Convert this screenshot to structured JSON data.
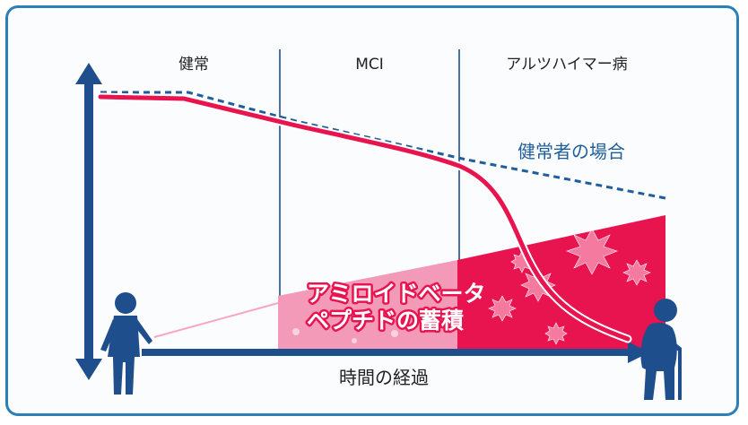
{
  "stages": [
    "健常",
    "MCI",
    "アルツハイマー病"
  ],
  "dashed_label": "健常者の場合",
  "amyloid_label": [
    "アミロイドベータ",
    "ペプチドの蓄積"
  ],
  "time_axis_label": "時間の経過",
  "colors": {
    "frame": "#2c7fb8",
    "axis": "#1f4e8c",
    "decline": "#e8144f",
    "dashed": "#1f5e9a",
    "amyloid_light": "#f49ab9",
    "amyloid_dark": "#e8144f",
    "figure": "#1f4e8c"
  },
  "icons": {
    "young_person": "person-standing-icon",
    "elderly_person": "elderly-with-cane-icon",
    "amyloid": "amyloid-spike-icon"
  }
}
